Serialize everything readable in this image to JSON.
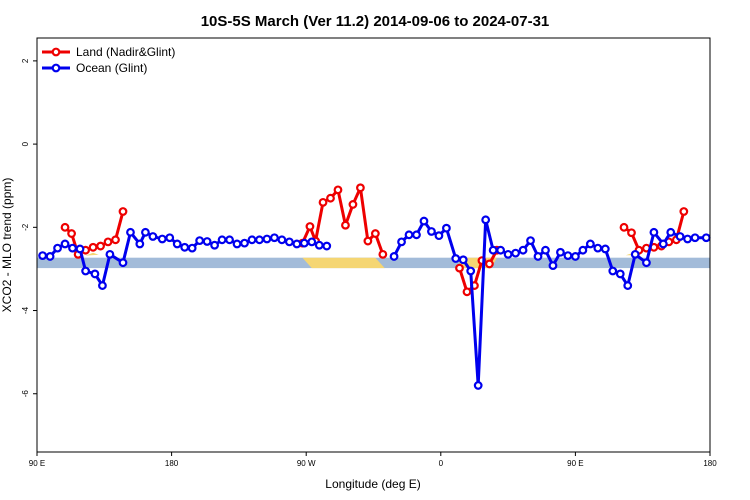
{
  "chart_data": {
    "type": "line",
    "title": "10S-5S March (Ver 11.2)   2014-09-06 to 2024-07-31",
    "xlabel": "Longitude (deg E)",
    "ylabel": "XCO2 - MLO trend (ppm)",
    "xlim": [
      90,
      450
    ],
    "ylim": [
      -7.4,
      2.55
    ],
    "x_ticks": [
      {
        "value": 90,
        "label": "90 E"
      },
      {
        "value": 162,
        "label": "180"
      },
      {
        "value": 234,
        "label": "90 W"
      },
      {
        "value": 306,
        "label": "0"
      },
      {
        "value": 378,
        "label": "90 E"
      },
      {
        "value": 450,
        "label": "180"
      }
    ],
    "y_ticks": [
      {
        "value": 2,
        "label": "2"
      },
      {
        "value": 0,
        "label": "0"
      },
      {
        "value": -2,
        "label": "-2"
      },
      {
        "value": -4,
        "label": "-4"
      },
      {
        "value": -6,
        "label": "-6"
      }
    ],
    "legend_position": "top-left",
    "grid": false,
    "map_strip": {
      "y_top": -2.73,
      "y_bottom": -2.98,
      "ocean_color": "#a2bbd9",
      "land_color": "#f5d673"
    },
    "series": [
      {
        "name": "Land (Nadir&Glint)",
        "color": "#ee0000",
        "segments": [
          [
            [
              105,
              -2.0
            ],
            [
              108.5,
              -2.15
            ],
            [
              112,
              -2.65
            ],
            [
              116,
              -2.55
            ],
            [
              120,
              -2.48
            ],
            [
              124,
              -2.45
            ],
            [
              128,
              -2.35
            ],
            [
              132,
              -2.3
            ],
            [
              136,
              -1.62
            ]
          ],
          [
            [
              232,
              -2.38
            ],
            [
              236,
              -1.98
            ],
            [
              239,
              -2.33
            ],
            [
              243,
              -1.4
            ],
            [
              247,
              -1.3
            ],
            [
              251,
              -1.1
            ],
            [
              255,
              -1.95
            ],
            [
              259,
              -1.45
            ],
            [
              263,
              -1.05
            ],
            [
              267,
              -2.33
            ],
            [
              271,
              -2.15
            ],
            [
              275,
              -2.65
            ]
          ],
          [
            [
              316,
              -2.98
            ],
            [
              320,
              -3.55
            ],
            [
              324,
              -3.4
            ],
            [
              328,
              -2.8
            ],
            [
              332,
              -2.88
            ],
            [
              336,
              -2.55
            ]
          ],
          [
            [
              404,
              -2.0
            ],
            [
              408,
              -2.13
            ],
            [
              412,
              -2.55
            ],
            [
              416,
              -2.5
            ],
            [
              420,
              -2.48
            ],
            [
              424,
              -2.45
            ],
            [
              428,
              -2.35
            ],
            [
              432,
              -2.3
            ],
            [
              436,
              -1.62
            ]
          ]
        ]
      },
      {
        "name": "Ocean (Glint)",
        "color": "#0000ee",
        "segments": [
          [
            [
              93,
              -2.68
            ],
            [
              97,
              -2.7
            ],
            [
              101,
              -2.5
            ],
            [
              105,
              -2.4
            ],
            [
              109,
              -2.5
            ],
            [
              113,
              -2.52
            ],
            [
              116,
              -3.05
            ],
            [
              121,
              -3.12
            ],
            [
              125,
              -3.4
            ],
            [
              129,
              -2.65
            ],
            [
              136,
              -2.85
            ],
            [
              140,
              -2.12
            ],
            [
              145,
              -2.4
            ],
            [
              148,
              -2.12
            ],
            [
              152,
              -2.22
            ],
            [
              157,
              -2.28
            ],
            [
              161,
              -2.25
            ],
            [
              165,
              -2.4
            ],
            [
              169,
              -2.48
            ],
            [
              173,
              -2.5
            ],
            [
              177,
              -2.32
            ],
            [
              181,
              -2.34
            ],
            [
              185,
              -2.43
            ],
            [
              189,
              -2.3
            ],
            [
              193,
              -2.3
            ],
            [
              197,
              -2.4
            ],
            [
              201,
              -2.38
            ],
            [
              205,
              -2.3
            ],
            [
              209,
              -2.3
            ],
            [
              213,
              -2.28
            ],
            [
              217,
              -2.25
            ],
            [
              221,
              -2.3
            ],
            [
              225,
              -2.35
            ],
            [
              229,
              -2.4
            ],
            [
              233,
              -2.38
            ],
            [
              237,
              -2.35
            ],
            [
              241,
              -2.43
            ],
            [
              245,
              -2.45
            ]
          ],
          [
            [
              281,
              -2.7
            ],
            [
              285,
              -2.35
            ],
            [
              289,
              -2.18
            ],
            [
              293,
              -2.18
            ],
            [
              297,
              -1.85
            ],
            [
              301,
              -2.1
            ],
            [
              305,
              -2.2
            ],
            [
              309,
              -2.02
            ],
            [
              314,
              -2.75
            ],
            [
              318,
              -2.78
            ],
            [
              322,
              -3.05
            ],
            [
              326,
              -5.8
            ],
            [
              330,
              -1.82
            ],
            [
              334,
              -2.55
            ],
            [
              338,
              -2.55
            ],
            [
              342,
              -2.65
            ],
            [
              346,
              -2.62
            ],
            [
              350,
              -2.55
            ],
            [
              354,
              -2.32
            ],
            [
              358,
              -2.7
            ],
            [
              362,
              -2.55
            ],
            [
              366,
              -2.92
            ],
            [
              370,
              -2.6
            ],
            [
              374,
              -2.68
            ],
            [
              378,
              -2.7
            ],
            [
              382,
              -2.55
            ],
            [
              386,
              -2.4
            ],
            [
              390,
              -2.5
            ],
            [
              394,
              -2.52
            ],
            [
              398,
              -3.05
            ],
            [
              402,
              -3.12
            ],
            [
              406,
              -3.4
            ],
            [
              410,
              -2.65
            ],
            [
              416,
              -2.85
            ],
            [
              420,
              -2.12
            ],
            [
              425,
              -2.4
            ],
            [
              429,
              -2.12
            ],
            [
              434,
              -2.22
            ],
            [
              438,
              -2.28
            ],
            [
              442,
              -2.25
            ],
            [
              448,
              -2.25
            ]
          ]
        ]
      }
    ]
  }
}
